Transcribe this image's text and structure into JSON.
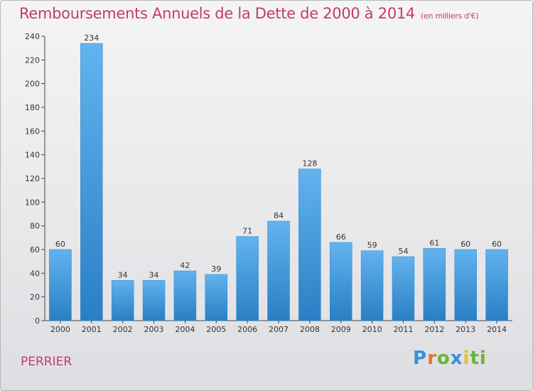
{
  "header": {
    "title": "Remboursements Annuels de la Dette de 2000 à 2014",
    "unit": "(en milliers d'€)"
  },
  "footer": {
    "commune": "PERRIER",
    "logo_letters": [
      "P",
      "r",
      "o",
      "x",
      "i",
      "ti"
    ]
  },
  "chart_data": {
    "type": "bar",
    "title": "Remboursements Annuels de la Dette de 2000 à 2014",
    "subtitle": "(en milliers d'€)",
    "xlabel": "",
    "ylabel": "",
    "categories": [
      "2000",
      "2001",
      "2002",
      "2003",
      "2004",
      "2005",
      "2006",
      "2007",
      "2008",
      "2009",
      "2010",
      "2011",
      "2012",
      "2013",
      "2014"
    ],
    "values": [
      60,
      234,
      34,
      34,
      42,
      39,
      71,
      84,
      128,
      66,
      59,
      54,
      61,
      60,
      60
    ],
    "ylim": [
      0,
      240
    ],
    "yticks": [
      0,
      20,
      40,
      60,
      80,
      100,
      120,
      140,
      160,
      180,
      200,
      220,
      240
    ],
    "grid": false,
    "bar_color": "#4a9fe0"
  }
}
